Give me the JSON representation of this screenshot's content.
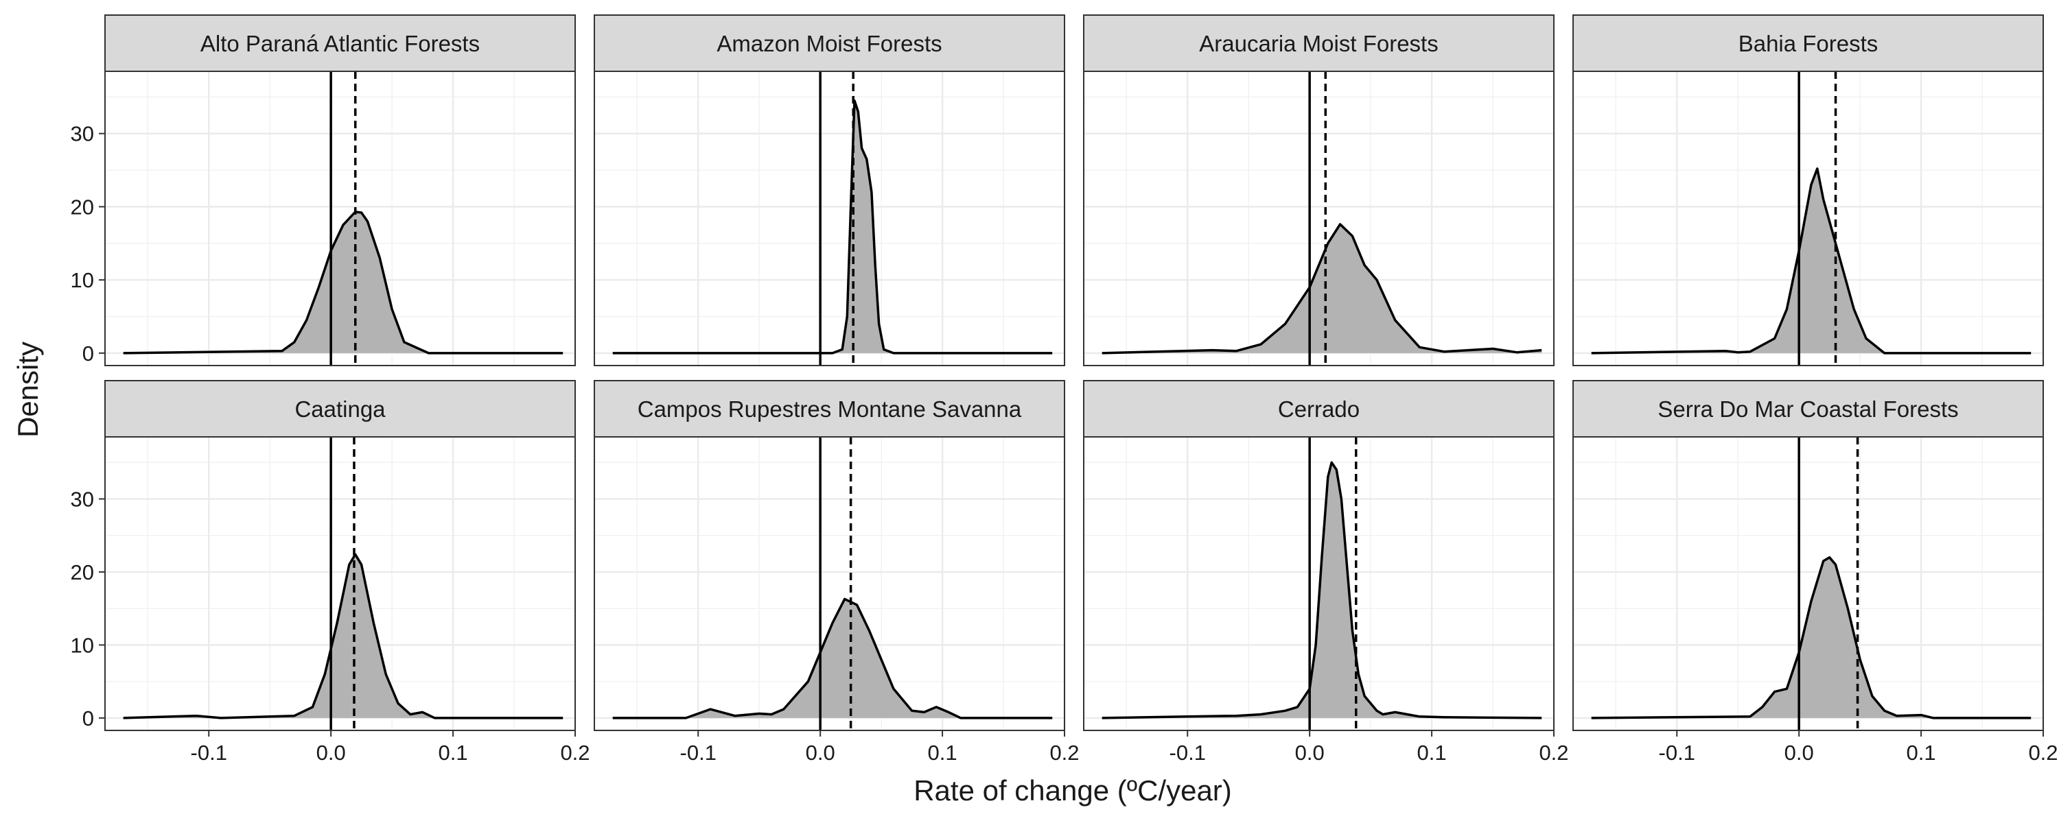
{
  "figure": {
    "ylabel": "Density",
    "xlabel": "Rate of change (ºC/year)"
  },
  "chart_data": {
    "type": "area",
    "xlabel": "Rate of change (ºC/year)",
    "ylabel": "Density",
    "xlim": [
      -0.185,
      0.2
    ],
    "ylim": [
      -1.7,
      38.5
    ],
    "x_ticks": [
      -0.1,
      0.0,
      0.1,
      0.2
    ],
    "x_tick_labels": [
      "-0.1",
      "0.0",
      "0.1",
      "0.2"
    ],
    "y_ticks": [
      0,
      10,
      20,
      30
    ],
    "y_tick_labels": [
      "0",
      "10",
      "20",
      "30"
    ],
    "grid": true,
    "reference_line_solid_x": 0,
    "colors": {
      "fill": "#b3b3b3",
      "line": "#000000",
      "strip": "#d9d9d9",
      "grid": "#ebebeb"
    },
    "panels": [
      {
        "title": "Alto Paraná Atlantic Forests",
        "mean": 0.02,
        "x": [
          -0.17,
          -0.04,
          -0.03,
          -0.02,
          -0.01,
          0.0,
          0.01,
          0.02,
          0.025,
          0.03,
          0.04,
          0.05,
          0.06,
          0.08,
          0.19
        ],
        "y": [
          0,
          0.3,
          1.5,
          4.5,
          9,
          14,
          17.5,
          19.3,
          19.2,
          18,
          13,
          6,
          1.5,
          0,
          0
        ]
      },
      {
        "title": "Amazon Moist Forests",
        "mean": 0.027,
        "x": [
          -0.17,
          0.01,
          0.018,
          0.022,
          0.025,
          0.028,
          0.031,
          0.034,
          0.038,
          0.042,
          0.045,
          0.048,
          0.052,
          0.06,
          0.19
        ],
        "y": [
          0,
          0,
          0.5,
          5,
          20,
          34.5,
          33,
          28,
          26.5,
          22,
          12,
          4,
          0.5,
          0,
          0
        ]
      },
      {
        "title": "Araucaria Moist Forests",
        "mean": 0.013,
        "x": [
          -0.17,
          -0.08,
          -0.06,
          -0.04,
          -0.02,
          0.0,
          0.015,
          0.025,
          0.035,
          0.045,
          0.055,
          0.07,
          0.09,
          0.11,
          0.15,
          0.17,
          0.19
        ],
        "y": [
          0,
          0.4,
          0.3,
          1.2,
          4,
          9,
          15,
          17.6,
          16,
          12,
          10,
          4.5,
          0.8,
          0.2,
          0.6,
          0.1,
          0.4
        ]
      },
      {
        "title": "Bahia Forests",
        "mean": 0.03,
        "x": [
          -0.17,
          -0.06,
          -0.05,
          -0.04,
          -0.02,
          -0.01,
          0.0,
          0.01,
          0.015,
          0.02,
          0.03,
          0.035,
          0.045,
          0.055,
          0.07,
          0.19
        ],
        "y": [
          0,
          0.3,
          0.1,
          0.2,
          2,
          6,
          14,
          23,
          25.2,
          21,
          15,
          12,
          6,
          2,
          0,
          0
        ]
      },
      {
        "title": "Caatinga",
        "mean": 0.019,
        "x": [
          -0.17,
          -0.11,
          -0.09,
          -0.03,
          -0.015,
          -0.005,
          0.005,
          0.015,
          0.02,
          0.025,
          0.035,
          0.045,
          0.055,
          0.065,
          0.075,
          0.085,
          0.19
        ],
        "y": [
          0,
          0.3,
          0,
          0.3,
          1.5,
          6,
          13,
          21,
          22.4,
          21,
          13,
          6,
          2,
          0.5,
          0.8,
          0,
          0
        ]
      },
      {
        "title": "Campos Rupestres Montane Savanna",
        "mean": 0.025,
        "x": [
          -0.17,
          -0.11,
          -0.09,
          -0.07,
          -0.05,
          -0.04,
          -0.03,
          -0.01,
          0.0,
          0.01,
          0.02,
          0.03,
          0.04,
          0.05,
          0.06,
          0.075,
          0.085,
          0.095,
          0.105,
          0.115,
          0.19
        ],
        "y": [
          0,
          0,
          1.2,
          0.3,
          0.6,
          0.5,
          1.2,
          5,
          9,
          13,
          16.3,
          15.5,
          12,
          8,
          4,
          1,
          0.8,
          1.5,
          0.8,
          0,
          0
        ]
      },
      {
        "title": "Cerrado",
        "mean": 0.038,
        "x": [
          -0.17,
          -0.1,
          -0.06,
          -0.04,
          -0.02,
          -0.01,
          0.0,
          0.005,
          0.01,
          0.015,
          0.018,
          0.022,
          0.026,
          0.03,
          0.035,
          0.04,
          0.045,
          0.05,
          0.055,
          0.06,
          0.07,
          0.08,
          0.09,
          0.11,
          0.19
        ],
        "y": [
          0,
          0.2,
          0.3,
          0.5,
          1,
          1.5,
          4,
          10,
          22,
          33,
          35,
          34,
          30,
          22,
          12,
          6,
          3,
          2,
          1,
          0.5,
          0.8,
          0.5,
          0.2,
          0.1,
          0
        ]
      },
      {
        "title": "Serra Do Mar Coastal Forests",
        "mean": 0.048,
        "x": [
          -0.17,
          -0.04,
          -0.03,
          -0.02,
          -0.01,
          0.0,
          0.01,
          0.02,
          0.025,
          0.03,
          0.04,
          0.05,
          0.06,
          0.07,
          0.08,
          0.1,
          0.11,
          0.19
        ],
        "y": [
          0,
          0.2,
          1.5,
          3.6,
          4,
          9,
          16,
          21.5,
          22,
          21,
          15,
          8,
          3,
          1,
          0.3,
          0.4,
          0,
          0
        ]
      }
    ]
  }
}
